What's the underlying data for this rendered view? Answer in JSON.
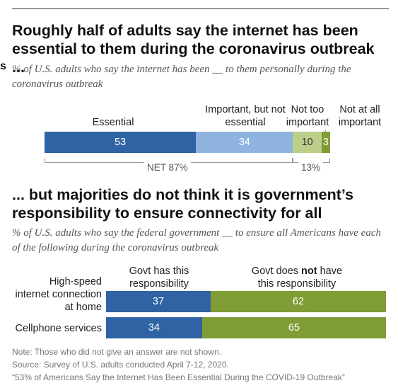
{
  "chart_data": [
    {
      "type": "bar",
      "title": "Roughly half of adults say the internet has been essential to them during the coronavirus outbreak ...",
      "subtitle": "% of U.S. adults who say the internet has been __ to them personally during the coronavirus outbreak",
      "edge_mark": "s",
      "stacked": true,
      "categories": [
        ""
      ],
      "series": [
        {
          "name": "Essential",
          "values": [
            53
          ],
          "color": "#2f63a4"
        },
        {
          "name": "Important, but not essential",
          "values": [
            34
          ],
          "color": "#8fb3e0"
        },
        {
          "name": "Not too important",
          "values": [
            10
          ],
          "color": "#bdcf8a"
        },
        {
          "name": "Not at all important",
          "values": [
            3
          ],
          "color": "#7f9c35"
        }
      ],
      "net_labels": [
        {
          "label": "NET 87%",
          "spans": [
            "Essential",
            "Important, but not essential"
          ]
        },
        {
          "label": "13%",
          "spans": [
            "Not too important",
            "Not at all important"
          ]
        }
      ]
    },
    {
      "type": "bar",
      "title": "... but majorities do not think it is government’s responsibility to ensure connectivity for all",
      "subtitle": "% of U.S. adults who say the federal government __ to ensure all Americans have each of the following during the coronavirus outbreak",
      "stacked": true,
      "categories": [
        "High-speed internet connection at home",
        "Cellphone services"
      ],
      "category_lines": [
        [
          "High-speed",
          "internet connection",
          "at home"
        ],
        [
          "Cellphone services"
        ]
      ],
      "series": [
        {
          "name": "Govt has this responsibility",
          "values": [
            37,
            34
          ],
          "color": "#2f63a4"
        },
        {
          "name": "Govt does not have this responsibility",
          "values": [
            62,
            65
          ],
          "color": "#7f9c35"
        }
      ],
      "legend_labels": {
        "has_line1": "Govt has this",
        "has_line2": "responsibility",
        "not_pre": "Govt does ",
        "not_bold": "not",
        "not_post": " have",
        "not_line2": "this responsibility"
      }
    }
  ],
  "notes": {
    "note": "Note: Those who did not give an answer are not shown.",
    "source": "Source: Survey of U.S. adults conducted April 7-12, 2020.",
    "report": "“53% of Americans Say the Internet Has Been Essential During the COVID-19 Outbreak”"
  }
}
